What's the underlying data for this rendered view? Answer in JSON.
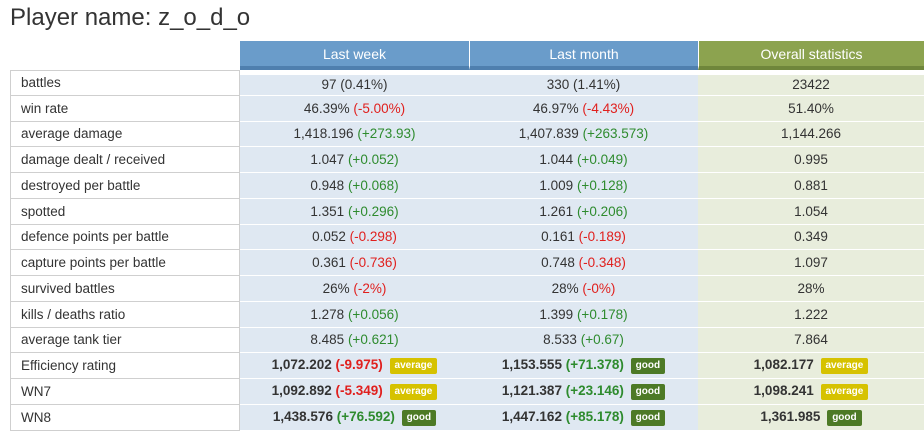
{
  "header": {
    "title": "Player name: z_o_d_o"
  },
  "columns": [
    "Last week",
    "Last month",
    "Overall statistics"
  ],
  "colors": {
    "week_header": "#6a9cca",
    "overall_header": "#8ca34f",
    "positive": "#2e8b2e",
    "negative": "#e0201e",
    "badge_average": "#d6c200",
    "badge_good": "#4d7a26"
  },
  "rows": [
    {
      "label": "battles",
      "week": {
        "value": "97",
        "delta": "(0.41%)",
        "delta_type": "plain"
      },
      "month": {
        "value": "330",
        "delta": "(1.41%)",
        "delta_type": "plain"
      },
      "overall": {
        "value": "23422"
      }
    },
    {
      "label": "win rate",
      "week": {
        "value": "46.39%",
        "delta": "(-5.00%)",
        "delta_type": "neg"
      },
      "month": {
        "value": "46.97%",
        "delta": "(-4.43%)",
        "delta_type": "neg"
      },
      "overall": {
        "value": "51.40%"
      }
    },
    {
      "label": "average damage",
      "week": {
        "value": "1,418.196",
        "delta": "(+273.93)",
        "delta_type": "pos"
      },
      "month": {
        "value": "1,407.839",
        "delta": "(+263.573)",
        "delta_type": "pos"
      },
      "overall": {
        "value": "1,144.266"
      }
    },
    {
      "label": "damage dealt / received",
      "week": {
        "value": "1.047",
        "delta": "(+0.052)",
        "delta_type": "pos"
      },
      "month": {
        "value": "1.044",
        "delta": "(+0.049)",
        "delta_type": "pos"
      },
      "overall": {
        "value": "0.995"
      }
    },
    {
      "label": "destroyed per battle",
      "week": {
        "value": "0.948",
        "delta": "(+0.068)",
        "delta_type": "pos"
      },
      "month": {
        "value": "1.009",
        "delta": "(+0.128)",
        "delta_type": "pos"
      },
      "overall": {
        "value": "0.881"
      }
    },
    {
      "label": "spotted",
      "week": {
        "value": "1.351",
        "delta": "(+0.296)",
        "delta_type": "pos"
      },
      "month": {
        "value": "1.261",
        "delta": "(+0.206)",
        "delta_type": "pos"
      },
      "overall": {
        "value": "1.054"
      }
    },
    {
      "label": "defence points per battle",
      "week": {
        "value": "0.052",
        "delta": "(-0.298)",
        "delta_type": "neg"
      },
      "month": {
        "value": "0.161",
        "delta": "(-0.189)",
        "delta_type": "neg"
      },
      "overall": {
        "value": "0.349"
      }
    },
    {
      "label": "capture points per battle",
      "week": {
        "value": "0.361",
        "delta": "(-0.736)",
        "delta_type": "neg"
      },
      "month": {
        "value": "0.748",
        "delta": "(-0.348)",
        "delta_type": "neg"
      },
      "overall": {
        "value": "1.097"
      }
    },
    {
      "label": "survived battles",
      "week": {
        "value": "26%",
        "delta": "(-2%)",
        "delta_type": "neg"
      },
      "month": {
        "value": "28%",
        "delta": "(-0%)",
        "delta_type": "neg"
      },
      "overall": {
        "value": "28%"
      }
    },
    {
      "label": "kills / deaths ratio",
      "week": {
        "value": "1.278",
        "delta": "(+0.056)",
        "delta_type": "pos"
      },
      "month": {
        "value": "1.399",
        "delta": "(+0.178)",
        "delta_type": "pos"
      },
      "overall": {
        "value": "1.222"
      }
    },
    {
      "label": "average tank tier",
      "week": {
        "value": "8.485",
        "delta": "(+0.621)",
        "delta_type": "pos"
      },
      "month": {
        "value": "8.533",
        "delta": "(+0.67)",
        "delta_type": "pos"
      },
      "overall": {
        "value": "7.864"
      }
    },
    {
      "label": "Efficiency rating",
      "rating": true,
      "week": {
        "value": "1,072.202",
        "delta": "(-9.975)",
        "delta_type": "neg",
        "badge": "average"
      },
      "month": {
        "value": "1,153.555",
        "delta": "(+71.378)",
        "delta_type": "pos",
        "badge": "good"
      },
      "overall": {
        "value": "1,082.177",
        "badge": "average"
      }
    },
    {
      "label": "WN7",
      "rating": true,
      "week": {
        "value": "1,092.892",
        "delta": "(-5.349)",
        "delta_type": "neg",
        "badge": "average"
      },
      "month": {
        "value": "1,121.387",
        "delta": "(+23.146)",
        "delta_type": "pos",
        "badge": "good"
      },
      "overall": {
        "value": "1,098.241",
        "badge": "average"
      }
    },
    {
      "label": "WN8",
      "rating": true,
      "week": {
        "value": "1,438.576",
        "delta": "(+76.592)",
        "delta_type": "pos",
        "badge": "good"
      },
      "month": {
        "value": "1,447.162",
        "delta": "(+85.178)",
        "delta_type": "pos",
        "badge": "good"
      },
      "overall": {
        "value": "1,361.985",
        "badge": "good"
      }
    }
  ]
}
